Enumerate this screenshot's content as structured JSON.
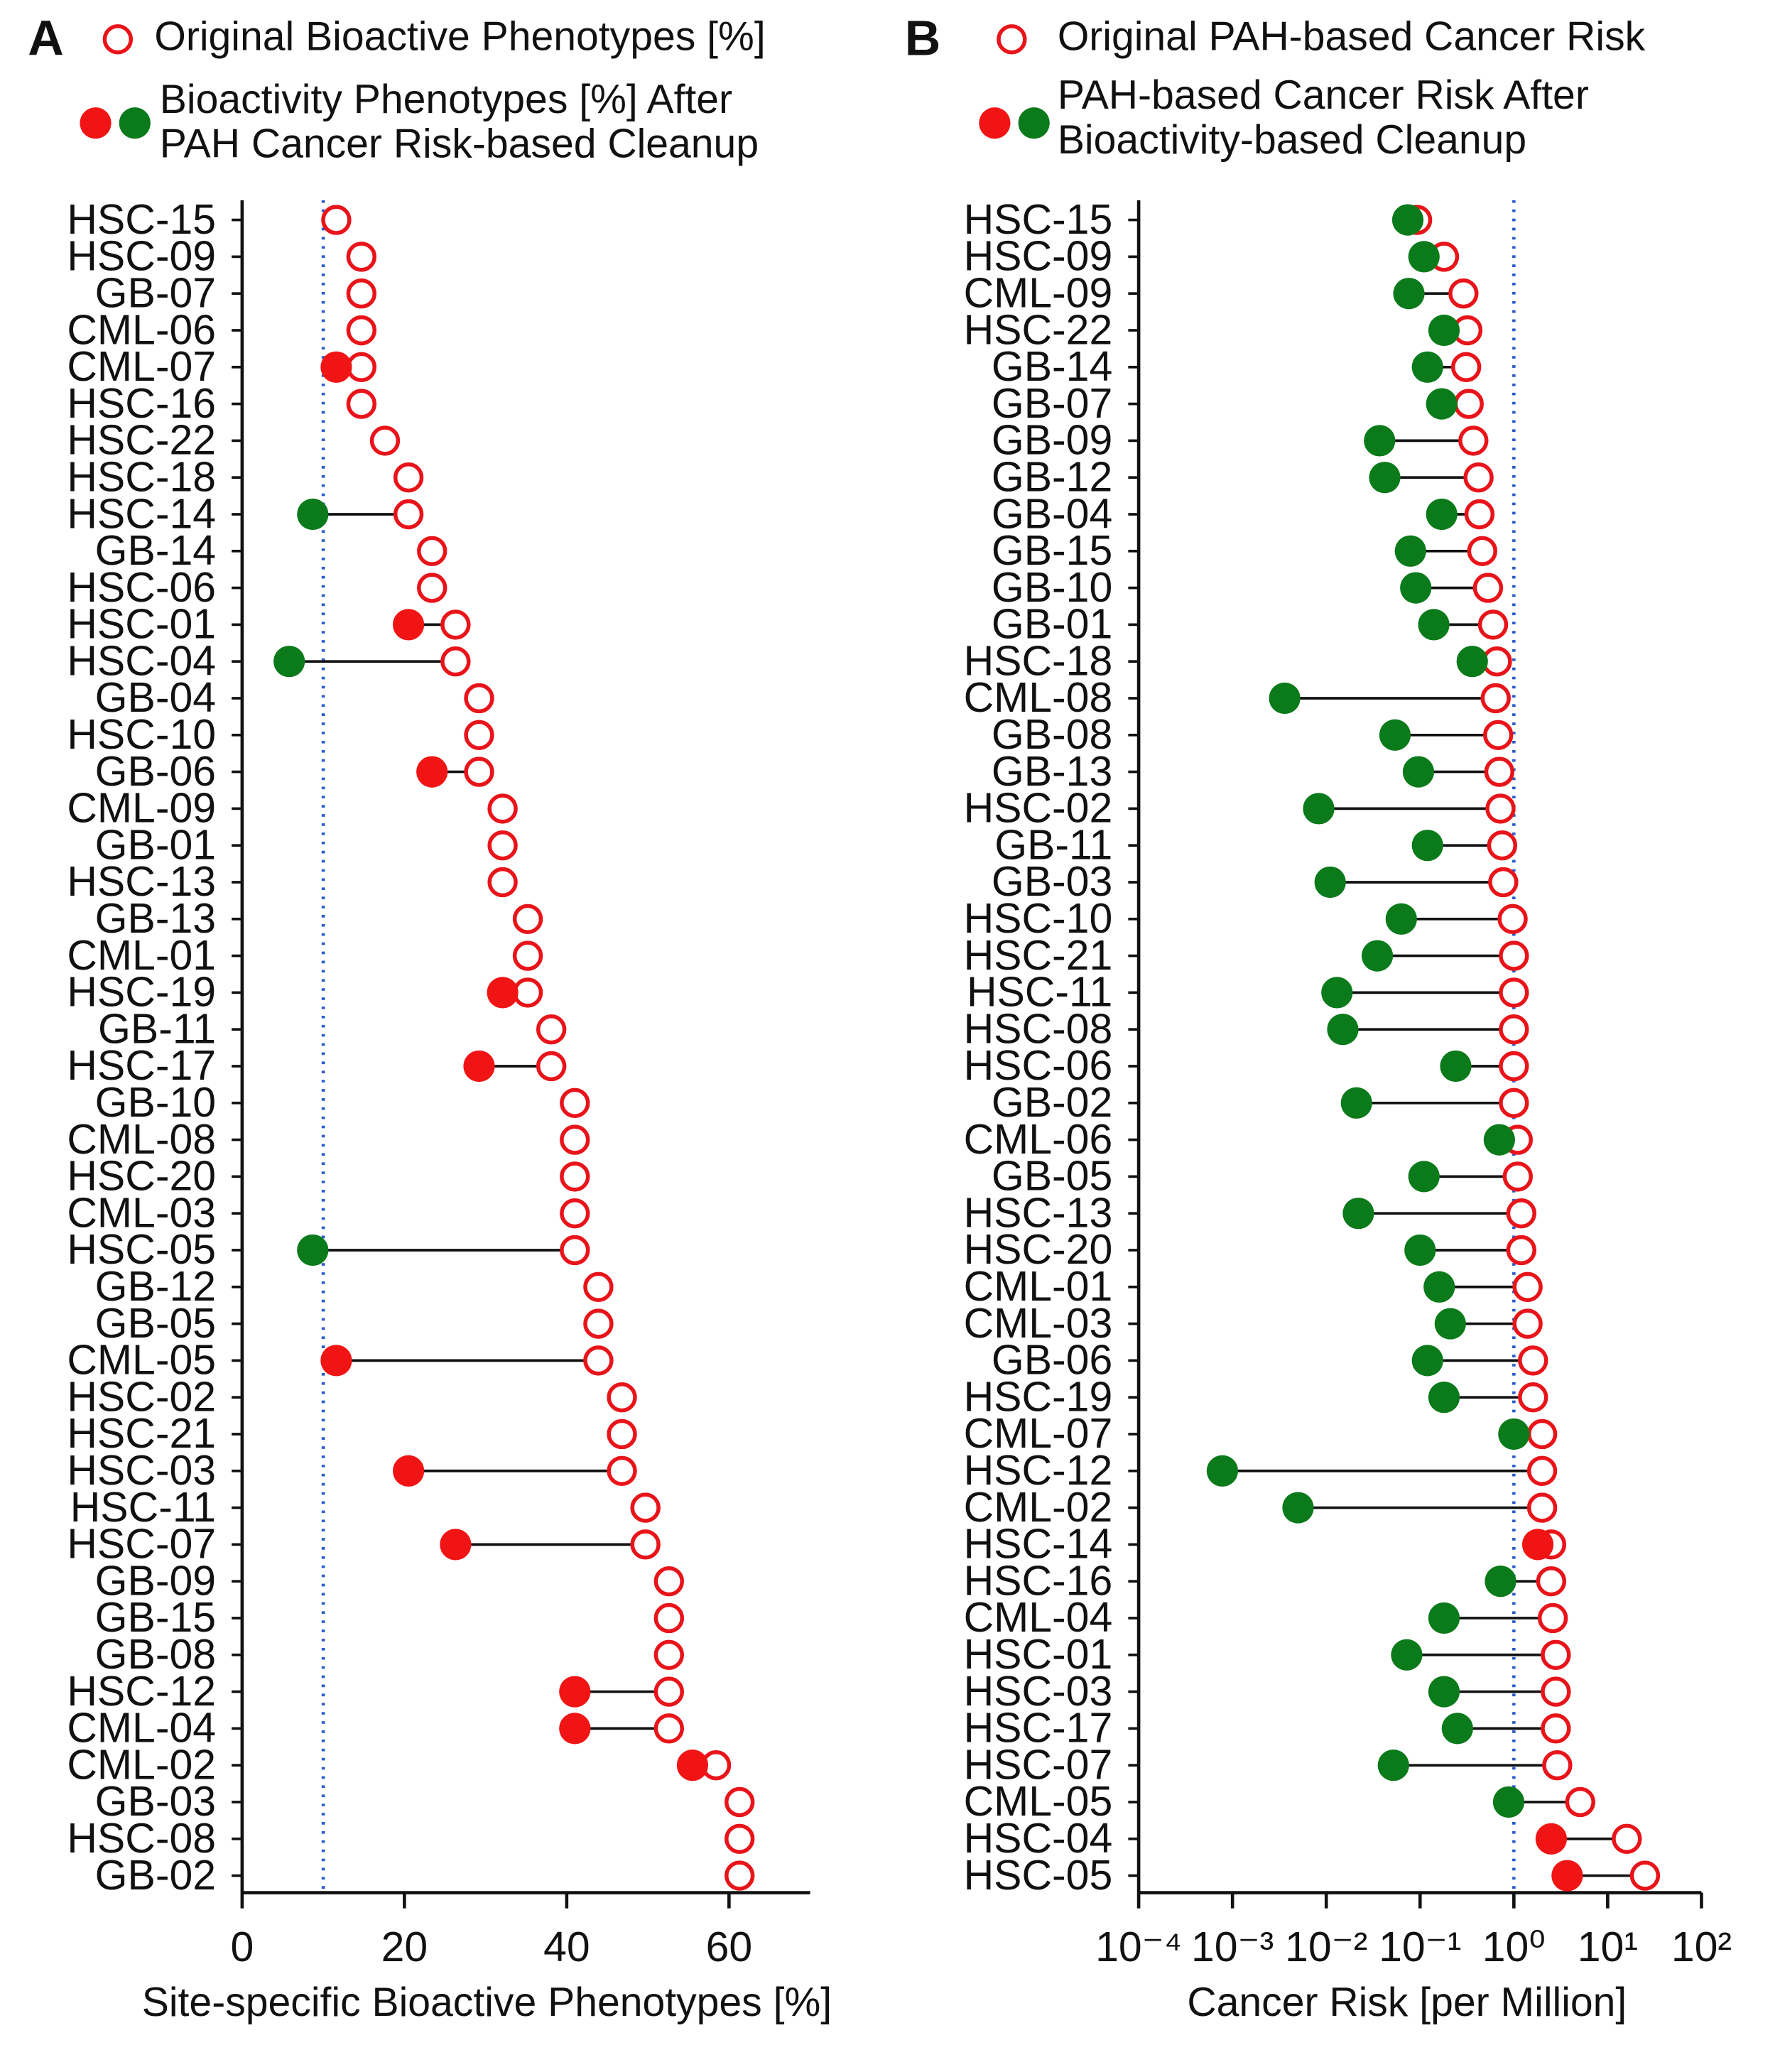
{
  "chart_data": [
    {
      "type": "lollipop",
      "panel": "A",
      "x_label": "Site-specific Bioactive Phenotypes [%]",
      "xlim": [
        0,
        70
      ],
      "xticks": [
        0,
        20,
        40,
        60
      ],
      "log_scale": false,
      "ref_line": 10,
      "grid": false,
      "categories": [
        "HSC-15",
        "HSC-09",
        "GB-07",
        "CML-06",
        "CML-07",
        "HSC-16",
        "HSC-22",
        "HSC-18",
        "HSC-14",
        "GB-14",
        "HSC-06",
        "HSC-01",
        "HSC-04",
        "GB-04",
        "HSC-10",
        "GB-06",
        "CML-09",
        "GB-01",
        "HSC-13",
        "GB-13",
        "CML-01",
        "HSC-19",
        "GB-11",
        "HSC-17",
        "GB-10",
        "CML-08",
        "HSC-20",
        "CML-03",
        "HSC-05",
        "GB-12",
        "GB-05",
        "CML-05",
        "HSC-02",
        "HSC-21",
        "HSC-03",
        "HSC-11",
        "HSC-07",
        "GB-09",
        "GB-15",
        "GB-08",
        "HSC-12",
        "CML-04",
        "CML-02",
        "GB-03",
        "HSC-08",
        "GB-02"
      ],
      "series": [
        {
          "name": "Original Bioactive Phenotypes [%]",
          "color": "#e8141a",
          "marker": "open",
          "values": [
            11.6,
            14.7,
            14.7,
            14.7,
            14.7,
            14.7,
            17.6,
            20.5,
            20.5,
            23.4,
            23.4,
            26.3,
            26.3,
            29.2,
            29.2,
            29.2,
            32.1,
            32.1,
            32.1,
            35.2,
            35.2,
            35.2,
            38.1,
            38.1,
            41,
            41,
            41,
            41,
            41,
            43.9,
            43.9,
            43.9,
            46.8,
            46.8,
            46.8,
            49.7,
            49.7,
            52.6,
            52.6,
            52.6,
            52.6,
            52.6,
            58.4,
            61.3,
            61.3,
            61.3
          ]
        },
        {
          "name": "Bioactivity Phenotypes [%] After\nPAH Cancer Risk-based Cleanup",
          "marker": "filled",
          "values": [
            null,
            null,
            null,
            null,
            11.6,
            null,
            null,
            null,
            8.7,
            null,
            null,
            20.5,
            5.8,
            null,
            null,
            23.4,
            null,
            null,
            null,
            null,
            null,
            32.1,
            null,
            29.2,
            null,
            null,
            null,
            null,
            8.7,
            null,
            null,
            11.6,
            null,
            null,
            20.5,
            null,
            26.3,
            null,
            null,
            null,
            41,
            41,
            55.5,
            null,
            null,
            null
          ],
          "colors": [
            null,
            null,
            null,
            null,
            "#f01414",
            null,
            null,
            null,
            "#0a7a1a",
            null,
            null,
            "#f01414",
            "#0a7a1a",
            null,
            null,
            "#f01414",
            null,
            null,
            null,
            null,
            null,
            "#f01414",
            null,
            "#f01414",
            null,
            null,
            null,
            null,
            "#0a7a1a",
            null,
            null,
            "#f01414",
            null,
            null,
            "#f01414",
            null,
            "#f01414",
            null,
            null,
            null,
            "#f01414",
            "#f01414",
            "#f01414",
            null,
            null,
            null
          ]
        }
      ]
    },
    {
      "type": "lollipop",
      "panel": "B",
      "x_label": "Cancer Risk [per Million]",
      "xlim": [
        0.0001,
        100
      ],
      "log_scale": true,
      "ref_line": 1,
      "grid": false,
      "xticks": [
        {
          "value": 0.0001,
          "label": "10⁻⁴"
        },
        {
          "value": 0.001,
          "label": "10⁻³"
        },
        {
          "value": 0.01,
          "label": "10⁻²"
        },
        {
          "value": 0.1,
          "label": "10⁻¹"
        },
        {
          "value": 1,
          "label": "10⁰"
        },
        {
          "value": 10,
          "label": "10¹"
        },
        {
          "value": 100,
          "label": "10²"
        }
      ],
      "categories": [
        "HSC-15",
        "HSC-09",
        "CML-09",
        "HSC-22",
        "GB-14",
        "GB-07",
        "GB-09",
        "GB-12",
        "GB-04",
        "GB-15",
        "GB-10",
        "GB-01",
        "HSC-18",
        "CML-08",
        "GB-08",
        "GB-13",
        "HSC-02",
        "GB-11",
        "GB-03",
        "HSC-10",
        "HSC-21",
        "HSC-11",
        "HSC-08",
        "HSC-06",
        "GB-02",
        "CML-06",
        "GB-05",
        "HSC-13",
        "HSC-20",
        "CML-01",
        "CML-03",
        "GB-06",
        "HSC-19",
        "CML-07",
        "HSC-12",
        "CML-02",
        "HSC-14",
        "HSC-16",
        "CML-04",
        "HSC-01",
        "HSC-03",
        "HSC-17",
        "HSC-07",
        "CML-05",
        "HSC-04",
        "HSC-05"
      ],
      "series": [
        {
          "name": "Original PAH-based Cancer Risk",
          "color": "#e8141a",
          "marker": "open",
          "values": [
            0.093,
            0.18,
            0.29,
            0.32,
            0.31,
            0.33,
            0.37,
            0.42,
            0.43,
            0.46,
            0.53,
            0.6,
            0.66,
            0.64,
            0.68,
            0.7,
            0.72,
            0.75,
            0.77,
            0.97,
            1,
            1,
            1,
            1,
            1,
            1.1,
            1.1,
            1.2,
            1.2,
            1.4,
            1.4,
            1.6,
            1.6,
            2,
            2,
            2,
            2.5,
            2.5,
            2.6,
            2.8,
            2.8,
            2.8,
            2.9,
            5.1,
            16,
            25
          ]
        },
        {
          "name": "PAH-based Cancer Risk After\nBioactivity-based Cleanup",
          "marker": "filled",
          "values": [
            0.074,
            0.11,
            0.076,
            0.18,
            0.12,
            0.17,
            0.037,
            0.042,
            0.17,
            0.079,
            0.09,
            0.14,
            0.36,
            0.0036,
            0.054,
            0.096,
            0.0083,
            0.12,
            0.011,
            0.063,
            0.035,
            0.013,
            0.015,
            0.24,
            0.021,
            0.7,
            0.11,
            0.022,
            0.1,
            0.16,
            0.21,
            0.12,
            0.18,
            1,
            0.00078,
            0.005,
            1.8,
            0.72,
            0.18,
            0.072,
            0.18,
            0.25,
            0.052,
            0.88,
            2.5,
            3.7
          ],
          "colors": [
            "#0a7a1a",
            "#0a7a1a",
            "#0a7a1a",
            "#0a7a1a",
            "#0a7a1a",
            "#0a7a1a",
            "#0a7a1a",
            "#0a7a1a",
            "#0a7a1a",
            "#0a7a1a",
            "#0a7a1a",
            "#0a7a1a",
            "#0a7a1a",
            "#0a7a1a",
            "#0a7a1a",
            "#0a7a1a",
            "#0a7a1a",
            "#0a7a1a",
            "#0a7a1a",
            "#0a7a1a",
            "#0a7a1a",
            "#0a7a1a",
            "#0a7a1a",
            "#0a7a1a",
            "#0a7a1a",
            "#0a7a1a",
            "#0a7a1a",
            "#0a7a1a",
            "#0a7a1a",
            "#0a7a1a",
            "#0a7a1a",
            "#0a7a1a",
            "#0a7a1a",
            "#0a7a1a",
            "#0a7a1a",
            "#0a7a1a",
            "#f01414",
            "#0a7a1a",
            "#0a7a1a",
            "#0a7a1a",
            "#0a7a1a",
            "#0a7a1a",
            "#0a7a1a",
            "#0a7a1a",
            "#f01414",
            "#f01414"
          ]
        }
      ]
    }
  ]
}
